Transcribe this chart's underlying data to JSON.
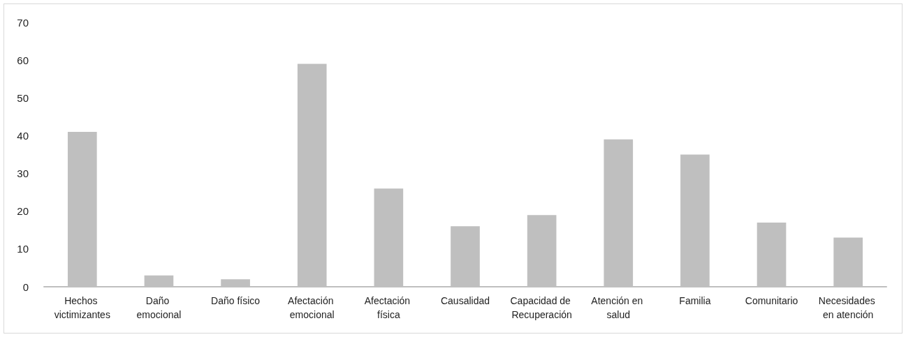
{
  "chart_data": {
    "type": "bar",
    "categories": [
      "Hechos victimizantes",
      "Daño emocional",
      "Daño físico",
      "Afectación emocional",
      "Afectación física",
      "Causalidad",
      "Capacidad de Recuperación",
      "Atención en salud",
      "Familia",
      "Comunitario",
      "Necesidades en atención"
    ],
    "values": [
      41,
      3,
      2,
      59,
      26,
      16,
      19,
      39,
      35,
      17,
      13
    ],
    "color": "#bfbfbf",
    "ylim": [
      0,
      70
    ],
    "yticks": [
      0,
      10,
      20,
      30,
      40,
      50,
      60,
      70
    ],
    "grid": false
  }
}
